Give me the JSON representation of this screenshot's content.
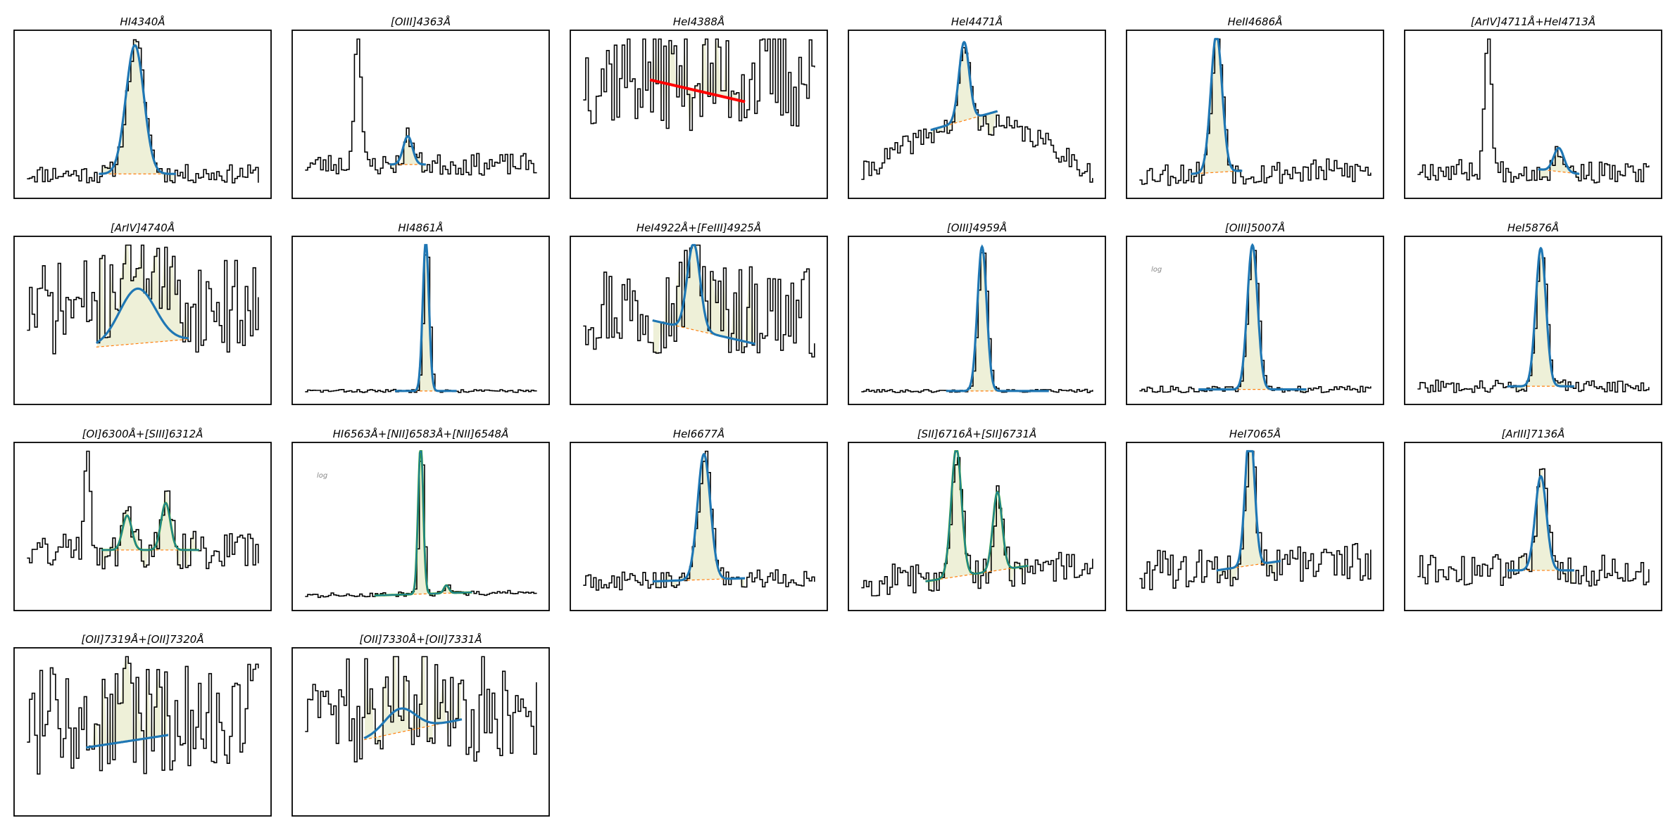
{
  "figure": {
    "columns": 6,
    "colors": {
      "spectrum": "#000000",
      "fit": "#1f77b4",
      "component": "#2ca02c",
      "continuum": "#ff7f0e",
      "fill": "#eef0d8",
      "bad_fit": "#ff0000"
    }
  },
  "chart_data": [
    {
      "type": "line",
      "title": "HI4340Å",
      "log": "",
      "peaks": [
        {
          "c": 0.47,
          "w": 0.035,
          "h": 0.82
        }
      ],
      "noise": 0.06,
      "cont": [
        0.12,
        0.12
      ],
      "fit": [
        0.33,
        0.63
      ],
      "fit_color": "fit",
      "seed": 11
    },
    {
      "type": "line",
      "title": "[OIII]4363Å",
      "log": "",
      "spikes": [
        {
          "c": 0.25,
          "w": 0.012,
          "h": 0.95
        }
      ],
      "peaks": [
        {
          "c": 0.45,
          "w": 0.018,
          "h": 0.18
        }
      ],
      "noise": 0.07,
      "cont": [
        0.18,
        0.18
      ],
      "fit": [
        0.38,
        0.52
      ],
      "fit_color": "fit",
      "seed": 23
    },
    {
      "type": "line",
      "title": "HeI4388Å",
      "log": "",
      "peaks": [],
      "noise": 0.35,
      "base": 0.55,
      "cont": [
        0.72,
        0.58
      ],
      "fit": [
        0.31,
        0.68
      ],
      "fit_color": "bad_fit",
      "bad": true,
      "seed": 37
    },
    {
      "type": "line",
      "title": "HeI4471Å",
      "log": "",
      "peaks": [
        {
          "c": 0.45,
          "w": 0.02,
          "h": 0.5
        }
      ],
      "noise": 0.07,
      "slope": "hump",
      "cont": [
        0.4,
        0.52
      ],
      "fit": [
        0.32,
        0.58
      ],
      "fit_color": "fit",
      "seed": 41
    },
    {
      "type": "line",
      "title": "HeII4686Å",
      "log": "",
      "peaks": [
        {
          "c": 0.35,
          "w": 0.022,
          "h": 0.88
        }
      ],
      "noise": 0.08,
      "cont": [
        0.12,
        0.14
      ],
      "fit": [
        0.25,
        0.45
      ],
      "fit_color": "fit",
      "seed": 53
    },
    {
      "type": "line",
      "title": "[ArIV]4711Å+HeI4713Å",
      "log": "",
      "spikes": [
        {
          "c": 0.32,
          "w": 0.012,
          "h": 0.95
        }
      ],
      "peaks": [
        {
          "c": 0.6,
          "w": 0.02,
          "h": 0.15
        }
      ],
      "noise": 0.07,
      "cont": [
        0.15,
        0.12
      ],
      "fit": [
        0.52,
        0.68
      ],
      "fit_color": "fit",
      "seed": 67
    },
    {
      "type": "line",
      "title": "[ArIV]4740Å",
      "log": "",
      "peaks": [
        {
          "c": 0.48,
          "w": 0.07,
          "h": 0.35
        }
      ],
      "noise": 0.3,
      "base": 0.48,
      "cont": [
        0.33,
        0.38
      ],
      "fit": [
        0.32,
        0.68
      ],
      "fit_color": "fit",
      "seed": 71
    },
    {
      "type": "line",
      "title": "HI4861Å",
      "log": "",
      "peaks": [
        {
          "c": 0.52,
          "w": 0.012,
          "h": 0.95
        }
      ],
      "noise": 0.01,
      "cont": [
        0.05,
        0.05
      ],
      "fit": [
        0.4,
        0.64
      ],
      "fit_color": "fit",
      "seed": 83
    },
    {
      "type": "line",
      "title": "HeI4922Å+[FeIII]4925Å",
      "log": "",
      "peaks": [
        {
          "c": 0.48,
          "w": 0.025,
          "h": 0.55
        }
      ],
      "noise": 0.3,
      "base": 0.45,
      "cont": [
        0.5,
        0.35
      ],
      "fit": [
        0.32,
        0.72
      ],
      "fit_color": "fit",
      "seed": 97
    },
    {
      "type": "line",
      "title": "[OIII]4959Å",
      "log": "",
      "peaks": [
        {
          "c": 0.52,
          "w": 0.018,
          "h": 0.92
        }
      ],
      "noise": 0.01,
      "cont": [
        0.05,
        0.05
      ],
      "fit": [
        0.38,
        0.78
      ],
      "fit_color": "fit",
      "seed": 101
    },
    {
      "type": "line",
      "title": "[OIII]5007Å",
      "log": "log",
      "peaks": [
        {
          "c": 0.49,
          "w": 0.02,
          "h": 0.92
        }
      ],
      "noise": 0.02,
      "cont": [
        0.06,
        0.06
      ],
      "fit": [
        0.28,
        0.7
      ],
      "fit_color": "fit",
      "seed": 113
    },
    {
      "type": "line",
      "title": "HeI5876Å",
      "log": "",
      "peaks": [
        {
          "c": 0.53,
          "w": 0.02,
          "h": 0.88
        }
      ],
      "noise": 0.04,
      "cont": [
        0.08,
        0.08
      ],
      "fit": [
        0.4,
        0.66
      ],
      "fit_color": "fit",
      "seed": 127
    },
    {
      "type": "line",
      "title": "[OI]6300Å+[SIII]6312Å",
      "log": "",
      "spikes": [
        {
          "c": 0.28,
          "w": 0.012,
          "h": 0.7
        }
      ],
      "peaks": [
        {
          "c": 0.44,
          "w": 0.018,
          "h": 0.22
        },
        {
          "c": 0.59,
          "w": 0.018,
          "h": 0.3
        }
      ],
      "noise": 0.12,
      "cont": [
        0.35,
        0.35
      ],
      "fit": [
        0.34,
        0.72
      ],
      "fit_color": "component",
      "seed": 131
    },
    {
      "type": "line",
      "title": "HI6563Å+[NII]6583Å+[NII]6548Å",
      "log": "log",
      "peaks": [
        {
          "c": 0.5,
          "w": 0.01,
          "h": 0.95
        },
        {
          "c": 0.6,
          "w": 0.01,
          "h": 0.05
        }
      ],
      "noise": 0.015,
      "cont": [
        0.06,
        0.08
      ],
      "fit": [
        0.32,
        0.7
      ],
      "fit_color": "component",
      "seed": 137
    },
    {
      "type": "line",
      "title": "HeI6677Å",
      "log": "",
      "peaks": [
        {
          "c": 0.52,
          "w": 0.025,
          "h": 0.8
        }
      ],
      "noise": 0.06,
      "cont": [
        0.15,
        0.17
      ],
      "fit": [
        0.32,
        0.68
      ],
      "fit_color": "fit",
      "seed": 149
    },
    {
      "type": "line",
      "title": "[SII]6716Å+[SII]6731Å",
      "log": "",
      "peaks": [
        {
          "c": 0.42,
          "w": 0.02,
          "h": 0.82
        },
        {
          "c": 0.58,
          "w": 0.018,
          "h": 0.5
        }
      ],
      "noise": 0.1,
      "cont": [
        0.15,
        0.25
      ],
      "fit": [
        0.3,
        0.7
      ],
      "fit_color": "component",
      "seed": 157
    },
    {
      "type": "line",
      "title": "HeI7065Å",
      "log": "",
      "peaks": [
        {
          "c": 0.48,
          "w": 0.018,
          "h": 0.88
        }
      ],
      "noise": 0.13,
      "cont": [
        0.22,
        0.28
      ],
      "fit": [
        0.35,
        0.6
      ],
      "fit_color": "fit",
      "seed": 163
    },
    {
      "type": "line",
      "title": "[ArIII]7136Å",
      "log": "",
      "peaks": [
        {
          "c": 0.53,
          "w": 0.022,
          "h": 0.6
        }
      ],
      "noise": 0.1,
      "cont": [
        0.22,
        0.22
      ],
      "fit": [
        0.4,
        0.66
      ],
      "fit_color": "fit",
      "seed": 173
    },
    {
      "type": "line",
      "title": "[OII]7319Å+[OII]7320Å",
      "log": "",
      "spikes": [
        {
          "c": 0.44,
          "w": 0.005,
          "h": 0.95
        }
      ],
      "peaks": [],
      "noise": 0.35,
      "base": 0.45,
      "cont": [
        0.4,
        0.48
      ],
      "fit": [
        0.28,
        0.6
      ],
      "fit_color": "fit",
      "seed": 181
    },
    {
      "type": "line",
      "title": "[OII]7330Å+[OII]7331Å",
      "log": "",
      "peaks": [
        {
          "c": 0.42,
          "w": 0.06,
          "h": 0.15
        }
      ],
      "noise": 0.35,
      "base": 0.5,
      "cont": [
        0.45,
        0.58
      ],
      "fit": [
        0.28,
        0.66
      ],
      "fit_color": "fit",
      "seed": 191
    }
  ]
}
